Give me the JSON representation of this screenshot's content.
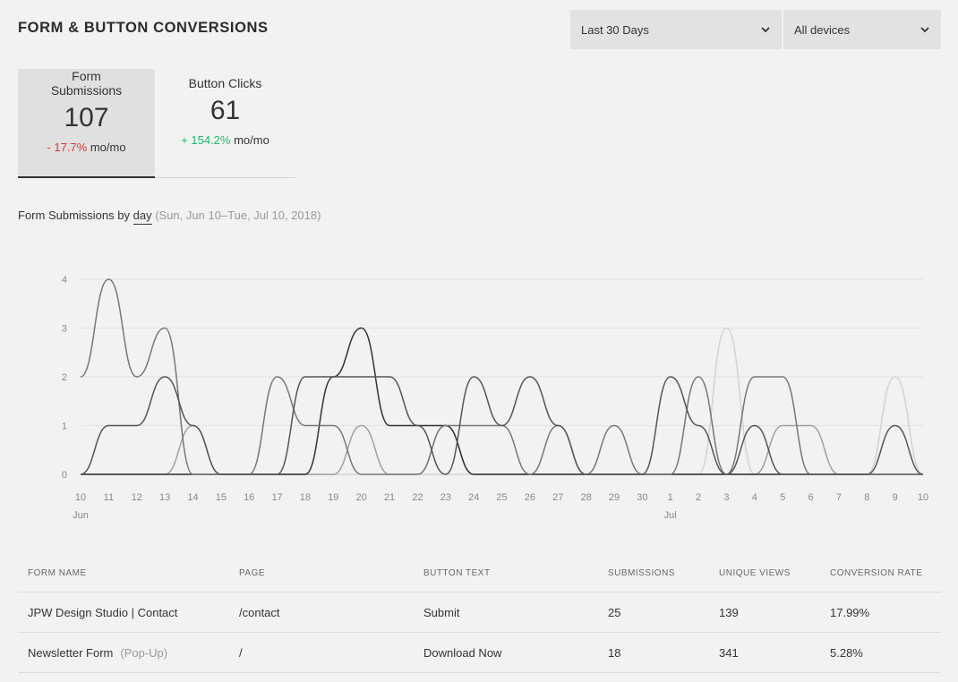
{
  "header": {
    "title": "FORM & BUTTON CONVERSIONS"
  },
  "filters": {
    "date_range": "Last 30 Days",
    "device": "All devices"
  },
  "tabs": [
    {
      "label": "Form Submissions",
      "value": "107",
      "change": "- 17.7%",
      "suffix": "mo/mo",
      "trend": "negative"
    },
    {
      "label": "Button Clicks",
      "value": "61",
      "change": "+ 154.2%",
      "suffix": "mo/mo",
      "trend": "positive"
    }
  ],
  "chart_header": {
    "prefix": "Form Submissions by",
    "granularity": "day",
    "range": "(Sun, Jun 10–Tue, Jul 10, 2018)"
  },
  "chart_data": {
    "type": "line",
    "x": [
      "10",
      "11",
      "12",
      "13",
      "14",
      "15",
      "16",
      "17",
      "18",
      "19",
      "20",
      "21",
      "22",
      "23",
      "24",
      "25",
      "26",
      "27",
      "28",
      "29",
      "30",
      "1",
      "2",
      "3",
      "4",
      "5",
      "6",
      "7",
      "8",
      "9",
      "10"
    ],
    "month_labels": [
      {
        "index": 0,
        "label": "Jun"
      },
      {
        "index": 21,
        "label": "Jul"
      }
    ],
    "ylim": [
      0,
      4
    ],
    "yticks": [
      0,
      1,
      2,
      3,
      4
    ],
    "grid": true,
    "series": [
      {
        "color": "#555555",
        "values": [
          0,
          1,
          1,
          2,
          1,
          0,
          0,
          0,
          2,
          2,
          2,
          2,
          1,
          0,
          2,
          1,
          2,
          1,
          0,
          0,
          0,
          2,
          1,
          0,
          1,
          0,
          0,
          0,
          0,
          1,
          0
        ]
      },
      {
        "color": "#777777",
        "values": [
          2,
          4,
          2,
          3,
          0,
          0,
          0,
          2,
          1,
          1,
          0,
          0,
          0,
          1,
          1,
          1,
          0,
          1,
          0,
          1,
          0,
          0,
          2,
          0,
          2,
          2,
          0,
          0,
          0,
          0,
          0
        ]
      },
      {
        "color": "#333333",
        "values": [
          0,
          0,
          0,
          0,
          0,
          0,
          0,
          0,
          0,
          2,
          3,
          1,
          1,
          1,
          0,
          0,
          0,
          0,
          0,
          0,
          0,
          0,
          0,
          0,
          0,
          0,
          0,
          0,
          0,
          0,
          0
        ]
      },
      {
        "color": "#a0a0a0",
        "values": [
          0,
          0,
          0,
          0,
          1,
          0,
          0,
          0,
          0,
          0,
          1,
          0,
          0,
          1,
          0,
          0,
          0,
          0,
          0,
          0,
          0,
          0,
          0,
          0,
          0,
          1,
          1,
          0,
          0,
          0,
          0
        ]
      },
      {
        "color": "#d2d2d2",
        "values": [
          0,
          0,
          0,
          0,
          0,
          0,
          0,
          0,
          0,
          0,
          0,
          0,
          0,
          0,
          0,
          0,
          0,
          0,
          0,
          0,
          0,
          0,
          0,
          3,
          0,
          0,
          0,
          0,
          0,
          2,
          0
        ]
      }
    ]
  },
  "table": {
    "headers": [
      "FORM NAME",
      "PAGE",
      "BUTTON TEXT",
      "SUBMISSIONS",
      "UNIQUE VIEWS",
      "CONVERSION RATE"
    ],
    "rows": [
      {
        "name": "JPW Design Studio | Contact",
        "tag": "",
        "page": "/contact",
        "button": "Submit",
        "submissions": "25",
        "views": "139",
        "rate": "17.99%"
      },
      {
        "name": "Newsletter Form",
        "tag": "(Pop-Up)",
        "page": "/",
        "button": "Download Now",
        "submissions": "18",
        "views": "341",
        "rate": "5.28%"
      }
    ]
  },
  "icons": {
    "dropdown": "chevron-down-icon"
  }
}
